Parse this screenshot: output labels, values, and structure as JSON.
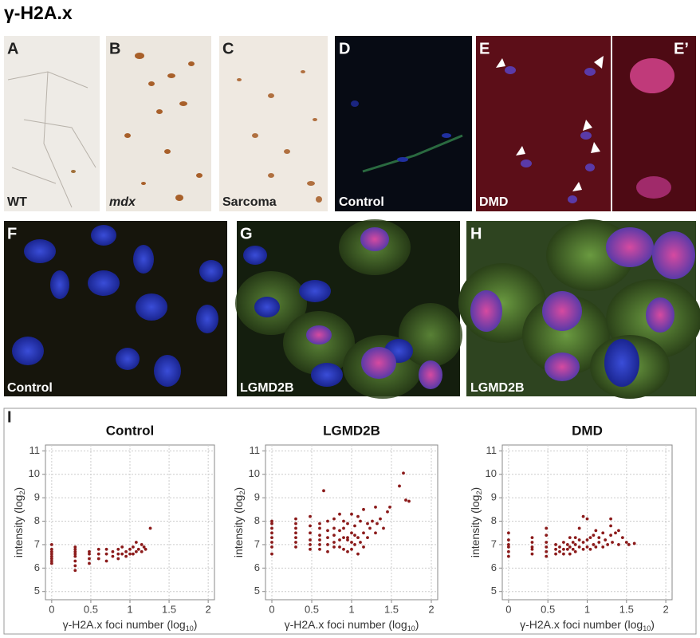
{
  "figure": {
    "title": "γ-H2A.x",
    "panels": [
      {
        "letter": "A",
        "caption": "WT"
      },
      {
        "letter": "B",
        "caption": "mdx"
      },
      {
        "letter": "C",
        "caption": "Sarcoma"
      },
      {
        "letter": "D",
        "caption": "Control"
      },
      {
        "letter": "E",
        "caption": "DMD"
      },
      {
        "letter": "E’"
      },
      {
        "letter": "F",
        "caption": "Control"
      },
      {
        "letter": "G",
        "caption": "LGMD2B"
      },
      {
        "letter": "H",
        "caption": "LGMD2B"
      }
    ],
    "plot_panel": "I"
  },
  "chart_data": [
    {
      "type": "scatter",
      "title": "Control",
      "color": "#8b1a1a",
      "grid": true,
      "x_label": {
        "text": "γ-H2A.x foci number (log",
        "sub": "10",
        "end": ")"
      },
      "y_label": {
        "text": "intensity (log",
        "sub": "2",
        "end": ")"
      },
      "xlim": [
        -0.08,
        2.08
      ],
      "xticks": [
        0,
        0.5,
        1,
        1.5,
        2
      ],
      "ylim": [
        4.65,
        11.25
      ],
      "yticks": [
        5,
        6,
        7,
        8,
        9,
        10,
        11
      ],
      "x": [
        0,
        0,
        0,
        0,
        0,
        0,
        0,
        0,
        0.3,
        0.3,
        0.3,
        0.3,
        0.3,
        0.3,
        0.3,
        0.3,
        0.48,
        0.48,
        0.48,
        0.48,
        0.6,
        0.6,
        0.6,
        0.7,
        0.7,
        0.7,
        0.78,
        0.78,
        0.85,
        0.85,
        0.85,
        0.9,
        0.9,
        0.95,
        0.95,
        1.0,
        1.0,
        1.04,
        1.04,
        1.08,
        1.08,
        1.11,
        1.15,
        1.15,
        1.18,
        1.2,
        1.26
      ],
      "values": [
        6.2,
        6.3,
        6.4,
        6.5,
        6.6,
        6.7,
        6.8,
        7.0,
        5.9,
        6.1,
        6.3,
        6.5,
        6.6,
        6.7,
        6.8,
        6.9,
        6.2,
        6.4,
        6.6,
        6.7,
        6.4,
        6.6,
        6.8,
        6.3,
        6.6,
        6.8,
        6.5,
        6.7,
        6.4,
        6.6,
        6.8,
        6.6,
        6.9,
        6.5,
        6.7,
        6.6,
        6.8,
        6.6,
        6.9,
        6.7,
        7.1,
        6.8,
        6.7,
        7.0,
        6.9,
        6.8,
        7.7
      ]
    },
    {
      "type": "scatter",
      "title": "LGMD2B",
      "color": "#8b1a1a",
      "grid": true,
      "x_label": {
        "text": "γ-H2A.x foci number (log",
        "sub": "10",
        "end": ")"
      },
      "y_label": {
        "text": "intensity (log",
        "sub": "2",
        "end": ")"
      },
      "xlim": [
        -0.08,
        2.08
      ],
      "xticks": [
        0,
        0.5,
        1,
        1.5,
        2
      ],
      "ylim": [
        4.65,
        11.25
      ],
      "yticks": [
        5,
        6,
        7,
        8,
        9,
        10,
        11
      ],
      "x": [
        0,
        0,
        0,
        0,
        0,
        0,
        0,
        0,
        0.3,
        0.3,
        0.3,
        0.3,
        0.3,
        0.3,
        0.3,
        0.48,
        0.48,
        0.48,
        0.48,
        0.48,
        0.48,
        0.6,
        0.6,
        0.6,
        0.6,
        0.6,
        0.6,
        0.7,
        0.7,
        0.7,
        0.7,
        0.7,
        0.78,
        0.78,
        0.78,
        0.78,
        0.78,
        0.85,
        0.85,
        0.85,
        0.85,
        0.9,
        0.9,
        0.9,
        0.9,
        0.95,
        0.95,
        0.95,
        1.0,
        1.0,
        1.0,
        1.0,
        1.04,
        1.04,
        1.04,
        1.08,
        1.08,
        1.08,
        1.11,
        1.11,
        1.15,
        1.15,
        1.15,
        1.2,
        1.2,
        1.23,
        1.26,
        1.3,
        1.3,
        1.32,
        1.36,
        1.4,
        1.45,
        1.48,
        1.6,
        1.65,
        1.68,
        1.72,
        0.65,
        0.95
      ],
      "values": [
        6.6,
        6.9,
        7.1,
        7.3,
        7.5,
        7.7,
        7.9,
        8.0,
        6.9,
        7.1,
        7.3,
        7.5,
        7.7,
        7.9,
        8.1,
        6.8,
        7.0,
        7.2,
        7.5,
        7.8,
        8.2,
        6.8,
        7.0,
        7.2,
        7.4,
        7.7,
        7.9,
        6.7,
        7.0,
        7.3,
        7.6,
        8.0,
        6.9,
        7.1,
        7.4,
        7.7,
        8.1,
        6.9,
        7.2,
        7.6,
        8.3,
        6.8,
        7.3,
        7.7,
        8.0,
        6.7,
        7.2,
        7.9,
        6.8,
        7.1,
        7.5,
        8.3,
        7.0,
        7.4,
        7.8,
        6.6,
        7.3,
        8.2,
        7.1,
        8.0,
        6.9,
        7.5,
        8.5,
        7.3,
        7.9,
        7.7,
        8.0,
        7.5,
        8.6,
        7.9,
        8.1,
        7.7,
        8.4,
        8.6,
        9.5,
        10.05,
        8.9,
        8.85,
        9.3,
        7.3
      ]
    },
    {
      "type": "scatter",
      "title": "DMD",
      "color": "#8b1a1a",
      "grid": true,
      "x_label": {
        "text": "γ-H2A.x foci number (log",
        "sub": "10",
        "end": ")"
      },
      "y_label": {
        "text": "intensity (log",
        "sub": "2",
        "end": ")"
      },
      "xlim": [
        -0.08,
        2.08
      ],
      "xticks": [
        0,
        0.5,
        1,
        1.5,
        2
      ],
      "ylim": [
        4.65,
        11.25
      ],
      "yticks": [
        5,
        6,
        7,
        8,
        9,
        10,
        11
      ],
      "x": [
        0,
        0,
        0,
        0,
        0,
        0,
        0.3,
        0.3,
        0.3,
        0.3,
        0.3,
        0.48,
        0.48,
        0.48,
        0.48,
        0.48,
        0.48,
        0.6,
        0.6,
        0.6,
        0.65,
        0.65,
        0.7,
        0.7,
        0.7,
        0.75,
        0.75,
        0.78,
        0.78,
        0.78,
        0.82,
        0.82,
        0.85,
        0.85,
        0.85,
        0.9,
        0.9,
        0.9,
        0.95,
        0.95,
        0.95,
        1.0,
        1.0,
        1.0,
        1.04,
        1.04,
        1.08,
        1.08,
        1.11,
        1.11,
        1.15,
        1.15,
        1.2,
        1.2,
        1.23,
        1.26,
        1.3,
        1.3,
        1.32,
        1.36,
        1.4,
        1.4,
        1.45,
        1.5,
        1.53,
        1.6,
        1.3
      ],
      "values": [
        6.5,
        6.7,
        6.9,
        7.0,
        7.2,
        7.5,
        6.6,
        6.8,
        6.9,
        7.1,
        7.3,
        6.5,
        6.7,
        6.9,
        7.1,
        7.4,
        7.7,
        6.6,
        6.8,
        7.0,
        6.7,
        6.9,
        6.6,
        6.8,
        7.1,
        6.8,
        7.0,
        6.6,
        6.9,
        7.3,
        6.8,
        7.1,
        6.7,
        7.0,
        7.3,
        6.9,
        7.2,
        7.7,
        6.8,
        7.1,
        8.2,
        6.9,
        7.2,
        8.1,
        6.8,
        7.3,
        7.0,
        7.4,
        6.9,
        7.6,
        7.1,
        7.3,
        6.9,
        7.5,
        7.2,
        7.0,
        7.4,
        7.8,
        7.1,
        7.5,
        7.0,
        7.6,
        7.3,
        7.1,
        7.0,
        7.05,
        8.1
      ]
    }
  ]
}
